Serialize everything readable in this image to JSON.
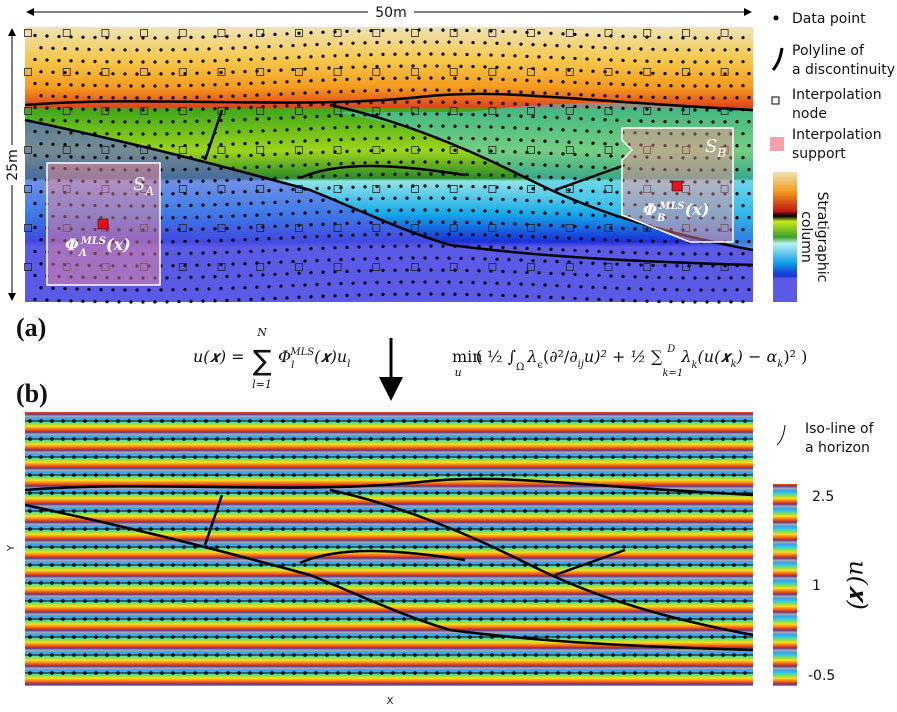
{
  "panel_a": {
    "label": "(a)",
    "width_label": "50m",
    "height_label": "25m",
    "support_a": "S",
    "support_a_sub": "A",
    "support_b": "S",
    "support_b_sub": "B",
    "phi_a": "Φ",
    "phi_a_sup": "MLS",
    "phi_a_sub": "A",
    "phi_a_arg": "(𝒙)",
    "phi_b": "Φ",
    "phi_b_sup": "MLS",
    "phi_b_sub": "B",
    "phi_b_arg": "(𝒙)"
  },
  "legend": {
    "data_point": "Data point",
    "polyline": [
      "Polyline of",
      "a discontinuity"
    ],
    "node": [
      "Interpolation",
      "node"
    ],
    "support": [
      "Interpolation",
      "support"
    ],
    "column": [
      "Stratigraphic",
      "column"
    ]
  },
  "equations": {
    "left": {
      "lhs": "u(𝒙) =",
      "sum_top": "N",
      "sum": "∑",
      "sum_bottom": "l=1",
      "phi": "Φ",
      "phi_sup": "MLS",
      "phi_sub": "l",
      "arg": "(𝒙)u",
      "arg_sub": "l"
    },
    "right": {
      "min": "min",
      "min_sub": "u",
      "part1": "( ½ ∫",
      "omega": "Ω",
      "part2": "λ",
      "eps_sub": "ϵ",
      "part3": "(∂²/∂",
      "ij_sub": "ij",
      "part4": "u)² + ½ ∑",
      "k_bottom": "k=1",
      "d_top": "D",
      "part5": "λ",
      "k_sub": "k",
      "part6": "(u(𝒙",
      "xk_sub": "k",
      "part7": ") − α",
      "ak_sub": "k",
      "part8": ")² )"
    }
  },
  "panel_b": {
    "label": "(b)",
    "x_label": "X",
    "y_label": "Y",
    "iso_line": [
      "Iso-line of",
      "a horizon"
    ],
    "colorbar_ticks": [
      "2.5",
      "1",
      "-0.5"
    ],
    "colorbar_label": "u(𝒙)"
  }
}
